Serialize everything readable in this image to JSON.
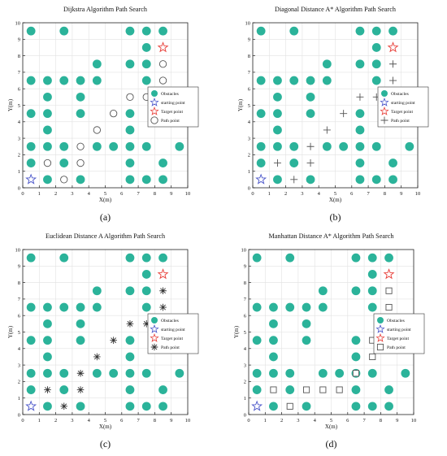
{
  "colors": {
    "obstacle": "#2bb39a",
    "start": "#4a55c9",
    "target": "#e8403a",
    "path": "#555555",
    "axis": "#222222",
    "grid": "#e2e2e2"
  },
  "legend_labels": [
    "Obstacles",
    "starting point",
    "Target point",
    "Path point"
  ],
  "chart_data": [
    {
      "type": "scatter",
      "title": "Dijkstra Algorithm Path Search",
      "caption": "(a)",
      "xlabel": "X(m)",
      "ylabel": "Y(m)",
      "xlim": [
        0,
        10
      ],
      "ylim": [
        0,
        10
      ],
      "x_ticks": [
        "0",
        "1",
        "2",
        "3",
        "4",
        "5",
        "6",
        "7",
        "8",
        "9",
        "10"
      ],
      "y_ticks": [
        "0",
        "1",
        "2",
        "3",
        "4",
        "5",
        "6",
        "7",
        "8",
        "9",
        "10"
      ],
      "grid": true,
      "legend_position": "right-middle",
      "path_marker": "circle",
      "start": [
        0.5,
        0.5
      ],
      "target": [
        8.5,
        8.5
      ],
      "obstacles": [
        [
          0.5,
          9.5
        ],
        [
          2.5,
          9.5
        ],
        [
          6.5,
          9.5
        ],
        [
          7.5,
          9.5
        ],
        [
          8.5,
          9.5
        ],
        [
          7.5,
          8.5
        ],
        [
          4.5,
          7.5
        ],
        [
          6.5,
          7.5
        ],
        [
          7.5,
          7.5
        ],
        [
          0.5,
          6.5
        ],
        [
          1.5,
          6.5
        ],
        [
          2.5,
          6.5
        ],
        [
          3.5,
          6.5
        ],
        [
          4.5,
          6.5
        ],
        [
          7.5,
          6.5
        ],
        [
          1.5,
          5.5
        ],
        [
          3.5,
          5.5
        ],
        [
          0.5,
          4.5
        ],
        [
          1.5,
          4.5
        ],
        [
          3.5,
          4.5
        ],
        [
          6.5,
          4.5
        ],
        [
          8.5,
          4.5
        ],
        [
          1.5,
          3.5
        ],
        [
          6.5,
          3.5
        ],
        [
          0.5,
          2.5
        ],
        [
          1.5,
          2.5
        ],
        [
          2.5,
          2.5
        ],
        [
          4.5,
          2.5
        ],
        [
          5.5,
          2.5
        ],
        [
          6.5,
          2.5
        ],
        [
          7.5,
          2.5
        ],
        [
          9.5,
          2.5
        ],
        [
          0.5,
          1.5
        ],
        [
          2.5,
          1.5
        ],
        [
          6.5,
          1.5
        ],
        [
          8.5,
          1.5
        ],
        [
          1.5,
          0.5
        ],
        [
          3.5,
          0.5
        ],
        [
          6.5,
          0.5
        ],
        [
          7.5,
          0.5
        ],
        [
          8.5,
          0.5
        ]
      ],
      "path": [
        [
          1.5,
          1.5
        ],
        [
          2.5,
          0.5
        ],
        [
          3.5,
          1.5
        ],
        [
          3.5,
          2.5
        ],
        [
          4.5,
          3.5
        ],
        [
          5.5,
          4.5
        ],
        [
          6.5,
          5.5
        ],
        [
          7.5,
          5.5
        ],
        [
          8.5,
          6.5
        ],
        [
          8.5,
          7.5
        ]
      ]
    },
    {
      "type": "scatter",
      "title": "Diagonal Distance A* Algorithm Path Search",
      "caption": "(b)",
      "xlabel": "X(m)",
      "ylabel": "Y(m)",
      "xlim": [
        0,
        10
      ],
      "ylim": [
        0,
        10
      ],
      "x_ticks": [
        "0",
        "1",
        "2",
        "3",
        "4",
        "5",
        "6",
        "7",
        "8",
        "9",
        "10"
      ],
      "y_ticks": [
        "0",
        "1",
        "2",
        "3",
        "4",
        "5",
        "6",
        "7",
        "8",
        "9",
        "10"
      ],
      "grid": true,
      "legend_position": "right-middle",
      "path_marker": "plus",
      "start": [
        0.5,
        0.5
      ],
      "target": [
        8.5,
        8.5
      ],
      "obstacles": [
        [
          0.5,
          9.5
        ],
        [
          2.5,
          9.5
        ],
        [
          6.5,
          9.5
        ],
        [
          7.5,
          9.5
        ],
        [
          8.5,
          9.5
        ],
        [
          7.5,
          8.5
        ],
        [
          4.5,
          7.5
        ],
        [
          6.5,
          7.5
        ],
        [
          7.5,
          7.5
        ],
        [
          0.5,
          6.5
        ],
        [
          1.5,
          6.5
        ],
        [
          2.5,
          6.5
        ],
        [
          3.5,
          6.5
        ],
        [
          4.5,
          6.5
        ],
        [
          7.5,
          6.5
        ],
        [
          1.5,
          5.5
        ],
        [
          3.5,
          5.5
        ],
        [
          0.5,
          4.5
        ],
        [
          1.5,
          4.5
        ],
        [
          3.5,
          4.5
        ],
        [
          6.5,
          4.5
        ],
        [
          8.5,
          4.5
        ],
        [
          1.5,
          3.5
        ],
        [
          6.5,
          3.5
        ],
        [
          0.5,
          2.5
        ],
        [
          1.5,
          2.5
        ],
        [
          2.5,
          2.5
        ],
        [
          4.5,
          2.5
        ],
        [
          5.5,
          2.5
        ],
        [
          6.5,
          2.5
        ],
        [
          7.5,
          2.5
        ],
        [
          9.5,
          2.5
        ],
        [
          0.5,
          1.5
        ],
        [
          2.5,
          1.5
        ],
        [
          6.5,
          1.5
        ],
        [
          8.5,
          1.5
        ],
        [
          1.5,
          0.5
        ],
        [
          3.5,
          0.5
        ],
        [
          6.5,
          0.5
        ],
        [
          7.5,
          0.5
        ],
        [
          8.5,
          0.5
        ]
      ],
      "path": [
        [
          1.5,
          1.5
        ],
        [
          2.5,
          0.5
        ],
        [
          3.5,
          1.5
        ],
        [
          3.5,
          2.5
        ],
        [
          4.5,
          3.5
        ],
        [
          5.5,
          4.5
        ],
        [
          6.5,
          5.5
        ],
        [
          7.5,
          5.5
        ],
        [
          8.5,
          6.5
        ],
        [
          8.5,
          7.5
        ]
      ]
    },
    {
      "type": "scatter",
      "title": "Euclidean Distance A Algorithm Path Search",
      "caption": "(c)",
      "xlabel": "X(m)",
      "ylabel": "Y(m)",
      "xlim": [
        0,
        10
      ],
      "ylim": [
        0,
        10
      ],
      "x_ticks": [
        "0",
        "1",
        "2",
        "3",
        "4",
        "5",
        "6",
        "7",
        "8",
        "9",
        "10"
      ],
      "y_ticks": [
        "0",
        "1",
        "2",
        "3",
        "4",
        "5",
        "6",
        "7",
        "8",
        "9",
        "10"
      ],
      "grid": true,
      "legend_position": "right-middle",
      "path_marker": "asterisk",
      "start": [
        0.5,
        0.5
      ],
      "target": [
        8.5,
        8.5
      ],
      "obstacles": [
        [
          0.5,
          9.5
        ],
        [
          2.5,
          9.5
        ],
        [
          6.5,
          9.5
        ],
        [
          7.5,
          9.5
        ],
        [
          8.5,
          9.5
        ],
        [
          7.5,
          8.5
        ],
        [
          4.5,
          7.5
        ],
        [
          6.5,
          7.5
        ],
        [
          7.5,
          7.5
        ],
        [
          0.5,
          6.5
        ],
        [
          1.5,
          6.5
        ],
        [
          2.5,
          6.5
        ],
        [
          3.5,
          6.5
        ],
        [
          4.5,
          6.5
        ],
        [
          7.5,
          6.5
        ],
        [
          1.5,
          5.5
        ],
        [
          3.5,
          5.5
        ],
        [
          0.5,
          4.5
        ],
        [
          1.5,
          4.5
        ],
        [
          3.5,
          4.5
        ],
        [
          6.5,
          4.5
        ],
        [
          8.5,
          4.5
        ],
        [
          1.5,
          3.5
        ],
        [
          6.5,
          3.5
        ],
        [
          0.5,
          2.5
        ],
        [
          1.5,
          2.5
        ],
        [
          2.5,
          2.5
        ],
        [
          4.5,
          2.5
        ],
        [
          5.5,
          2.5
        ],
        [
          6.5,
          2.5
        ],
        [
          7.5,
          2.5
        ],
        [
          9.5,
          2.5
        ],
        [
          0.5,
          1.5
        ],
        [
          2.5,
          1.5
        ],
        [
          6.5,
          1.5
        ],
        [
          8.5,
          1.5
        ],
        [
          1.5,
          0.5
        ],
        [
          3.5,
          0.5
        ],
        [
          6.5,
          0.5
        ],
        [
          7.5,
          0.5
        ],
        [
          8.5,
          0.5
        ]
      ],
      "path": [
        [
          1.5,
          1.5
        ],
        [
          2.5,
          0.5
        ],
        [
          3.5,
          1.5
        ],
        [
          3.5,
          2.5
        ],
        [
          4.5,
          3.5
        ],
        [
          5.5,
          4.5
        ],
        [
          6.5,
          5.5
        ],
        [
          7.5,
          5.5
        ],
        [
          8.5,
          6.5
        ],
        [
          8.5,
          7.5
        ]
      ]
    },
    {
      "type": "scatter",
      "title": "Manhattan Distance A* Algorithm Path Search",
      "caption": "(d)",
      "xlabel": "X(m)",
      "ylabel": "Y(m)",
      "xlim": [
        0,
        10
      ],
      "ylim": [
        0,
        10
      ],
      "x_ticks": [
        "0",
        "1",
        "2",
        "3",
        "4",
        "5",
        "6",
        "7",
        "8",
        "9",
        "10"
      ],
      "y_ticks": [
        "0",
        "1",
        "2",
        "3",
        "4",
        "5",
        "6",
        "7",
        "8",
        "9",
        "10"
      ],
      "grid": true,
      "legend_position": "right-middle",
      "path_marker": "square",
      "start": [
        0.5,
        0.5
      ],
      "target": [
        8.5,
        8.5
      ],
      "obstacles": [
        [
          0.5,
          9.5
        ],
        [
          2.5,
          9.5
        ],
        [
          6.5,
          9.5
        ],
        [
          7.5,
          9.5
        ],
        [
          8.5,
          9.5
        ],
        [
          7.5,
          8.5
        ],
        [
          4.5,
          7.5
        ],
        [
          6.5,
          7.5
        ],
        [
          7.5,
          7.5
        ],
        [
          0.5,
          6.5
        ],
        [
          1.5,
          6.5
        ],
        [
          2.5,
          6.5
        ],
        [
          3.5,
          6.5
        ],
        [
          4.5,
          6.5
        ],
        [
          7.5,
          6.5
        ],
        [
          1.5,
          5.5
        ],
        [
          3.5,
          5.5
        ],
        [
          0.5,
          4.5
        ],
        [
          1.5,
          4.5
        ],
        [
          3.5,
          4.5
        ],
        [
          6.5,
          4.5
        ],
        [
          8.5,
          4.5
        ],
        [
          1.5,
          3.5
        ],
        [
          6.5,
          3.5
        ],
        [
          0.5,
          2.5
        ],
        [
          1.5,
          2.5
        ],
        [
          2.5,
          2.5
        ],
        [
          4.5,
          2.5
        ],
        [
          5.5,
          2.5
        ],
        [
          6.5,
          2.5
        ],
        [
          7.5,
          2.5
        ],
        [
          9.5,
          2.5
        ],
        [
          0.5,
          1.5
        ],
        [
          2.5,
          1.5
        ],
        [
          6.5,
          1.5
        ],
        [
          8.5,
          1.5
        ],
        [
          1.5,
          0.5
        ],
        [
          3.5,
          0.5
        ],
        [
          6.5,
          0.5
        ],
        [
          7.5,
          0.5
        ],
        [
          8.5,
          0.5
        ]
      ],
      "path": [
        [
          1.5,
          1.5
        ],
        [
          2.5,
          0.5
        ],
        [
          3.5,
          1.5
        ],
        [
          4.5,
          1.5
        ],
        [
          5.5,
          1.5
        ],
        [
          6.5,
          2.5
        ],
        [
          7.5,
          3.5
        ],
        [
          7.5,
          4.5
        ],
        [
          8.5,
          5.5
        ],
        [
          8.5,
          6.5
        ],
        [
          8.5,
          7.5
        ]
      ]
    }
  ]
}
